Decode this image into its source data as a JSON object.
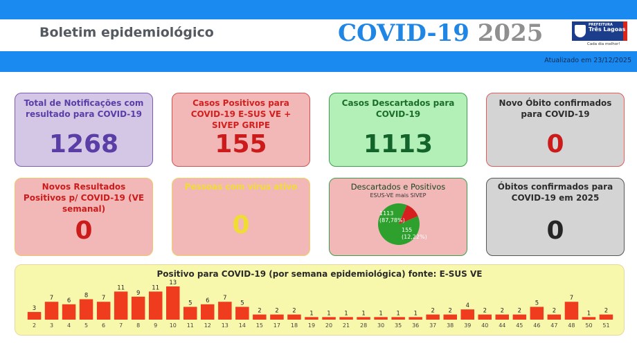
{
  "header": {
    "title": "Boletim epidemiológico",
    "covid_label": "COVID-19",
    "year_label": "2025",
    "logo": {
      "line1": "PREFEITURA",
      "line2": "Três Lagoas",
      "tagline": "Cada dia melhor!"
    },
    "updated": "Atualizado em 23/12/2025"
  },
  "cards": {
    "total_notifications": {
      "title": "Total de Notificações com resultado para COVID-19",
      "value": "1268"
    },
    "positive_cases": {
      "title": "Casos Positivos para COVID-19 E-SUS VE + SIVEP GRIPE",
      "value": "155"
    },
    "discarded_cases": {
      "title": "Casos Descartados para COVID-19",
      "value": "1113"
    },
    "new_death": {
      "title": "Novo Óbito confirmados para COVID-19",
      "value": "0"
    },
    "new_positive_weekly": {
      "title": "Novos Resultados Positivos p/ COVID-19 (VE semanal)",
      "value": "0"
    },
    "active_virus": {
      "title": "Pessoas com vírus ativo",
      "value": "0"
    },
    "discarded_positive": {
      "title": "Descartados e Positivos",
      "subtitle": "ESUS-VE mais SIVEP",
      "slices": [
        {
          "label": "1113",
          "pct": "(87,78%)",
          "value": 1113,
          "color": "#2ea02e"
        },
        {
          "label": "155",
          "pct": "(12,22%)",
          "value": 155,
          "color": "#d62020"
        }
      ]
    },
    "deaths_2025": {
      "title": "Óbitos confirmados para COVID-19 em 2025",
      "value": "0"
    }
  },
  "colors": {
    "accent_blue": "#1a8af0",
    "bar_red": "#f03c1e"
  },
  "chart_data": {
    "type": "bar",
    "title": "Positivo para COVID-19 (por semana epidemiológica) fonte: E-SUS VE",
    "categories": [
      "2",
      "3",
      "4",
      "5",
      "6",
      "7",
      "8",
      "9",
      "10",
      "11",
      "12",
      "13",
      "14",
      "15",
      "17",
      "18",
      "19",
      "20",
      "21",
      "28",
      "30",
      "35",
      "36",
      "37",
      "38",
      "39",
      "40",
      "44",
      "45",
      "46",
      "47",
      "48",
      "50",
      "51"
    ],
    "values": [
      3,
      7,
      6,
      8,
      7,
      11,
      9,
      11,
      13,
      5,
      6,
      7,
      5,
      2,
      2,
      2,
      1,
      1,
      1,
      1,
      1,
      1,
      1,
      2,
      2,
      4,
      2,
      2,
      2,
      5,
      2,
      7,
      1,
      2
    ],
    "xlabel": "",
    "ylabel": "",
    "grid": false
  }
}
